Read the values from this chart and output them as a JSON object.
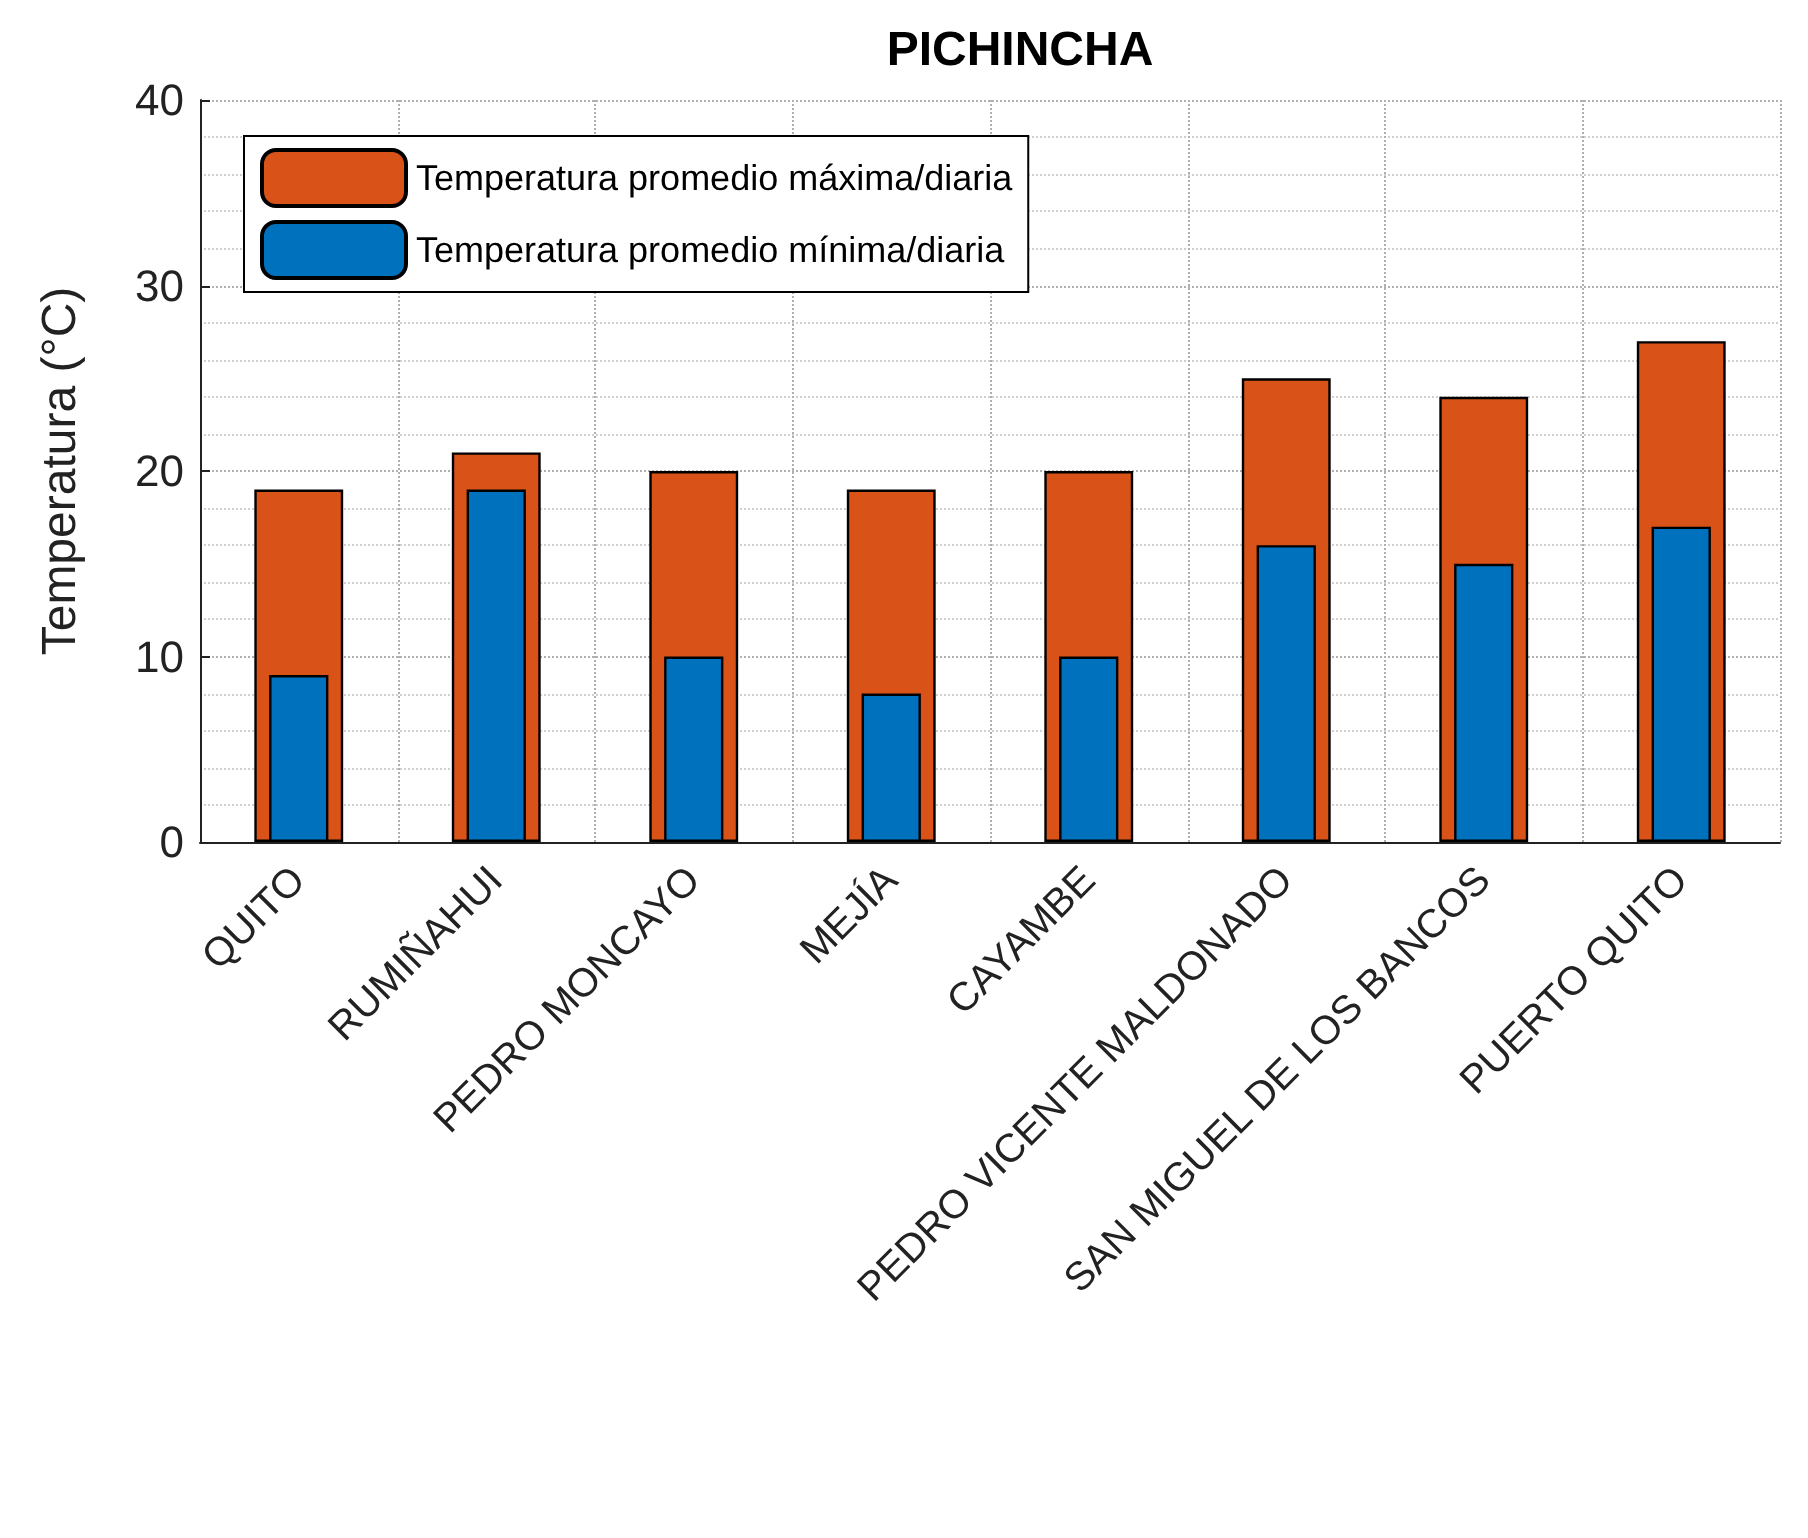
{
  "chart_data": {
    "type": "bar",
    "title": "PICHINCHA",
    "ylabel": "Temperatura (°C)",
    "categories": [
      "QUITO",
      "RUMIÑAHUI",
      "PEDRO MONCAYO",
      "MEJÍA",
      "CAYAMBE",
      "PEDRO VICENTE MALDONADO",
      "SAN MIGUEL DE LOS BANCOS",
      "PUERTO QUITO"
    ],
    "series": [
      {
        "name": "Temperatura promedio máxima/diaria",
        "color": "#d95319",
        "values": [
          19,
          21,
          20,
          19,
          20,
          25,
          24,
          27
        ]
      },
      {
        "name": "Temperatura promedio mínima/diaria",
        "color": "#0072bd",
        "values": [
          9,
          19,
          10,
          8,
          10,
          16,
          15,
          17
        ]
      }
    ],
    "ylim": [
      0,
      40
    ],
    "yticks": [
      0,
      10,
      20,
      30,
      40
    ],
    "grid": true,
    "legend": "top left"
  }
}
